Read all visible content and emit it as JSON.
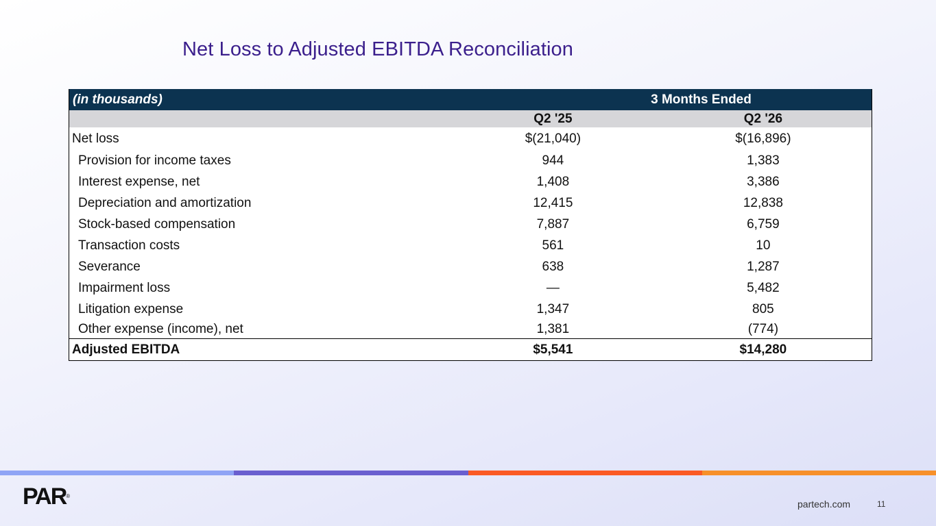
{
  "title": "Net Loss to Adjusted EBITDA Reconciliation",
  "table": {
    "units_label": "(in thousands)",
    "period_header": "3 Months Ended",
    "columns": [
      "Q2 '25",
      "Q2 '26"
    ],
    "rows": [
      {
        "label": "Net loss",
        "values": [
          "$(21,040)",
          "$(16,896)"
        ]
      },
      {
        "label": "Provision for income taxes",
        "values": [
          "944",
          "1,383"
        ]
      },
      {
        "label": "Interest expense, net",
        "values": [
          "1,408",
          "3,386"
        ]
      },
      {
        "label": "Depreciation and amortization",
        "values": [
          "12,415",
          "12,838"
        ]
      },
      {
        "label": "Stock-based compensation",
        "values": [
          "7,887",
          "6,759"
        ]
      },
      {
        "label": "Transaction costs",
        "values": [
          "561",
          "10"
        ]
      },
      {
        "label": "Severance",
        "values": [
          "638",
          "1,287"
        ]
      },
      {
        "label": "Impairment loss",
        "values": [
          "—",
          "5,482"
        ]
      },
      {
        "label": "Litigation expense",
        "values": [
          "1,347",
          "805"
        ]
      },
      {
        "label": "Other expense (income), net",
        "values": [
          "1,381",
          "(774)"
        ]
      }
    ],
    "total": {
      "label": "Adjusted EBITDA",
      "values": [
        "$5,541",
        "$14,280"
      ]
    }
  },
  "colors": {
    "title": "#3b1f8c",
    "header_bg": "#0c3350",
    "subheader_bg": "#d6d6d9",
    "stripe": [
      "#8fa4f5",
      "#6a5fcf",
      "#fb5a24",
      "#f7902a"
    ]
  },
  "footer": {
    "logo_text": "PAR",
    "logo_mark": "®",
    "website": "partech.com",
    "page_number": "11"
  }
}
